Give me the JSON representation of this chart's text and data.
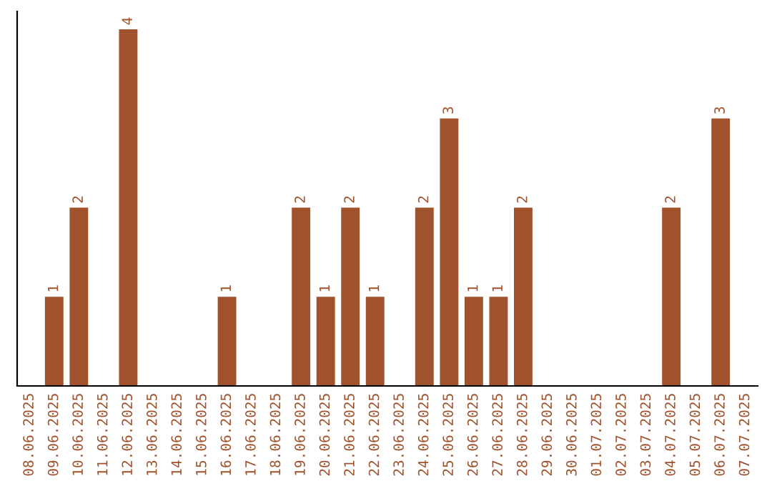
{
  "chart_data": {
    "type": "bar",
    "categories": [
      "08.06.2025",
      "09.06.2025",
      "10.06.2025",
      "11.06.2025",
      "12.06.2025",
      "13.06.2025",
      "14.06.2025",
      "15.06.2025",
      "16.06.2025",
      "17.06.2025",
      "18.06.2025",
      "19.06.2025",
      "20.06.2025",
      "21.06.2025",
      "22.06.2025",
      "23.06.2025",
      "24.06.2025",
      "25.06.2025",
      "26.06.2025",
      "27.06.2025",
      "28.06.2025",
      "29.06.2025",
      "30.06.2025",
      "01.07.2025",
      "02.07.2025",
      "03.07.2025",
      "04.07.2025",
      "05.07.2025",
      "06.07.2025",
      "07.07.2025"
    ],
    "values": [
      0,
      1,
      2,
      0,
      4,
      0,
      0,
      0,
      1,
      0,
      0,
      2,
      1,
      2,
      1,
      0,
      2,
      3,
      1,
      1,
      2,
      0,
      0,
      0,
      0,
      0,
      2,
      0,
      3,
      0
    ],
    "value_labels": [
      null,
      "1",
      "2",
      null,
      "4",
      null,
      null,
      null,
      "1",
      null,
      null,
      "2",
      "1",
      "2",
      "1",
      null,
      "2",
      "3",
      "1",
      "1",
      "2",
      null,
      null,
      null,
      null,
      null,
      "2",
      null,
      "3",
      null
    ],
    "color": "#a0522d",
    "tick_labels": "x",
    "grid": false,
    "legend": false
  }
}
